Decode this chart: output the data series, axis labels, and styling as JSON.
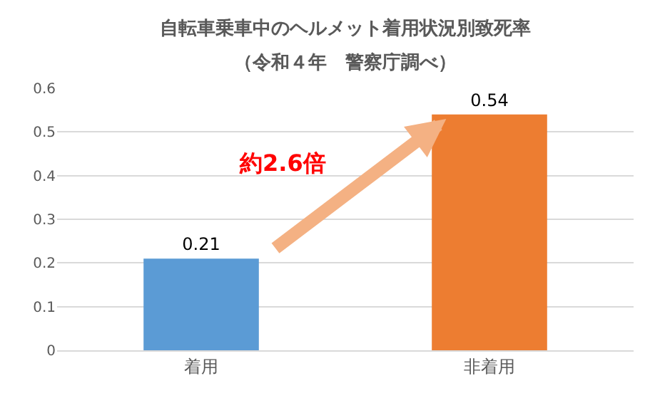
{
  "chart_data": {
    "type": "bar",
    "title": "自転車乗車中のヘルメット着用状況別致死率",
    "subtitle": "（令和４年　警察庁調べ）",
    "categories": [
      "着用",
      "非着用"
    ],
    "values": [
      0.21,
      0.54
    ],
    "colors": [
      "#5b9bd5",
      "#ed7d31"
    ],
    "ylim": [
      0,
      0.6
    ],
    "yticks": [
      0,
      0.1,
      0.2,
      0.3,
      0.4,
      0.5,
      0.6
    ],
    "grid": "y",
    "data_labels": true,
    "annotations": [
      "約2.6倍"
    ]
  }
}
